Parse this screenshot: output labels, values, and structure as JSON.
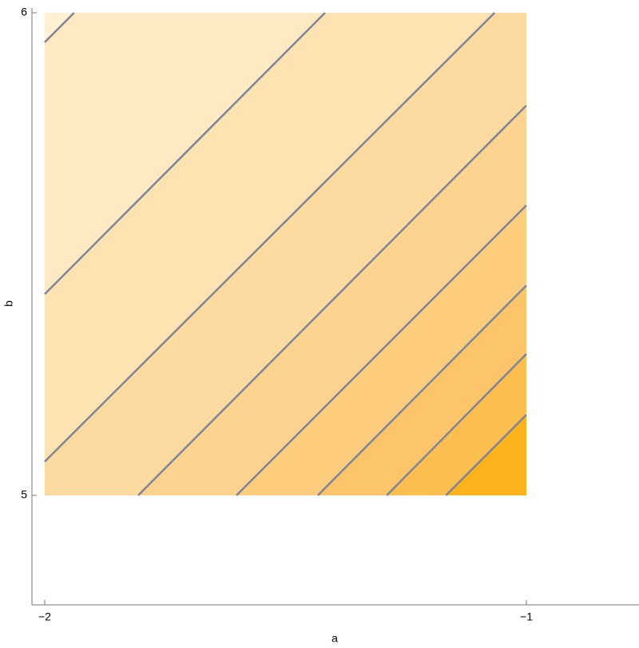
{
  "chart_data": {
    "type": "contour",
    "x_label": "a",
    "y_label": "b",
    "xlim": [
      -2.0265,
      -0.7662
    ],
    "ylim": [
      4.7732,
      6.0099
    ],
    "xticks": [
      {
        "value": -2,
        "label": "−2"
      },
      {
        "value": -1,
        "label": "−1"
      }
    ],
    "yticks": [
      5,
      6
    ],
    "plot_range_x": [
      -2,
      -1
    ],
    "plot_range_y": [
      5,
      6
    ],
    "line_color": "#7f8596",
    "band_colors": [
      "#fdf0d3",
      "#fde9c2",
      "#fde3b2",
      "#fddba0",
      "#fdd48f",
      "#fdcd7d",
      "#fdc56a",
      "#fdbe50",
      "#fdb41c"
    ],
    "contours": [
      {
        "x": [
          -2,
          -1.939
        ],
        "y": [
          5.939,
          6
        ]
      },
      {
        "x": [
          -2,
          -1.418
        ],
        "y": [
          5.417,
          6
        ]
      },
      {
        "x": [
          -2,
          -1.066
        ],
        "y": [
          5.07,
          6
        ]
      },
      {
        "x": [
          -1.806,
          -1
        ],
        "y": [
          5,
          5.808
        ]
      },
      {
        "x": [
          -1.602,
          -1
        ],
        "y": [
          5,
          5.601
        ]
      },
      {
        "x": [
          -1.433,
          -1
        ],
        "y": [
          5,
          5.435
        ]
      },
      {
        "x": [
          -1.29,
          -1
        ],
        "y": [
          5,
          5.293
        ]
      },
      {
        "x": [
          -1.167,
          -1
        ],
        "y": [
          5,
          5.167
        ]
      }
    ]
  }
}
